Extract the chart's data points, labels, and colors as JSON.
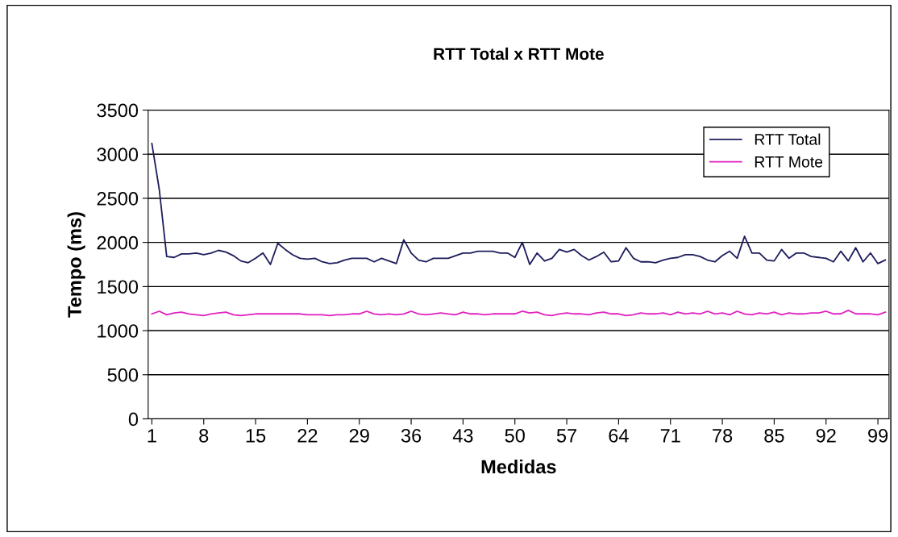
{
  "chart_data": {
    "type": "line",
    "title": "RTT Total x RTT Mote",
    "xlabel": "Medidas",
    "ylabel": "Tempo (ms)",
    "x": [
      1,
      2,
      3,
      4,
      5,
      6,
      7,
      8,
      9,
      10,
      11,
      12,
      13,
      14,
      15,
      16,
      17,
      18,
      19,
      20,
      21,
      22,
      23,
      24,
      25,
      26,
      27,
      28,
      29,
      30,
      31,
      32,
      33,
      34,
      35,
      36,
      37,
      38,
      39,
      40,
      41,
      42,
      43,
      44,
      45,
      46,
      47,
      48,
      49,
      50,
      51,
      52,
      53,
      54,
      55,
      56,
      57,
      58,
      59,
      60,
      61,
      62,
      63,
      64,
      65,
      66,
      67,
      68,
      69,
      70,
      71,
      72,
      73,
      74,
      75,
      76,
      77,
      78,
      79,
      80,
      81,
      82,
      83,
      84,
      85,
      86,
      87,
      88,
      89,
      90,
      91,
      92,
      93,
      94,
      95,
      96,
      97,
      98,
      99,
      100
    ],
    "series": [
      {
        "name": "RTT Total",
        "color": "#1c1c5c",
        "values": [
          3120,
          2600,
          1840,
          1830,
          1870,
          1870,
          1880,
          1860,
          1880,
          1910,
          1890,
          1850,
          1790,
          1770,
          1820,
          1880,
          1750,
          1990,
          1920,
          1860,
          1820,
          1810,
          1820,
          1780,
          1760,
          1770,
          1800,
          1820,
          1820,
          1820,
          1780,
          1820,
          1790,
          1760,
          2030,
          1880,
          1800,
          1780,
          1820,
          1820,
          1820,
          1850,
          1880,
          1880,
          1900,
          1900,
          1900,
          1880,
          1880,
          1830,
          2000,
          1750,
          1880,
          1790,
          1820,
          1920,
          1890,
          1920,
          1850,
          1800,
          1840,
          1890,
          1780,
          1790,
          1940,
          1820,
          1780,
          1780,
          1770,
          1800,
          1820,
          1830,
          1860,
          1860,
          1840,
          1800,
          1780,
          1850,
          1900,
          1820,
          2070,
          1880,
          1880,
          1800,
          1790,
          1920,
          1820,
          1880,
          1880,
          1840,
          1830,
          1820,
          1780,
          1900,
          1790,
          1940,
          1780,
          1880,
          1760,
          1800
        ]
      },
      {
        "name": "RTT Mote",
        "color": "#e020c0",
        "values": [
          1190,
          1220,
          1180,
          1200,
          1210,
          1190,
          1180,
          1170,
          1190,
          1200,
          1210,
          1180,
          1170,
          1180,
          1190,
          1190,
          1190,
          1190,
          1190,
          1190,
          1190,
          1180,
          1180,
          1180,
          1170,
          1180,
          1180,
          1190,
          1190,
          1220,
          1190,
          1180,
          1190,
          1180,
          1190,
          1220,
          1190,
          1180,
          1190,
          1200,
          1190,
          1180,
          1210,
          1190,
          1190,
          1180,
          1190,
          1190,
          1190,
          1190,
          1220,
          1200,
          1210,
          1180,
          1170,
          1190,
          1200,
          1190,
          1190,
          1180,
          1200,
          1210,
          1190,
          1190,
          1170,
          1180,
          1200,
          1190,
          1190,
          1200,
          1180,
          1210,
          1190,
          1200,
          1190,
          1220,
          1190,
          1200,
          1180,
          1220,
          1190,
          1180,
          1200,
          1190,
          1210,
          1180,
          1200,
          1190,
          1190,
          1200,
          1200,
          1220,
          1190,
          1190,
          1230,
          1190,
          1190,
          1190,
          1180,
          1210
        ]
      }
    ],
    "xlim": [
      0.5,
      100.5
    ],
    "xticks": [
      1,
      8,
      15,
      22,
      29,
      36,
      43,
      50,
      57,
      64,
      71,
      78,
      85,
      92,
      99
    ],
    "ylim": [
      0,
      3500
    ],
    "yticks": [
      0,
      500,
      1000,
      1500,
      2000,
      2500,
      3000,
      3500
    ],
    "grid": "y",
    "legend": "top right",
    "marker": "none",
    "line_style": "solid"
  }
}
